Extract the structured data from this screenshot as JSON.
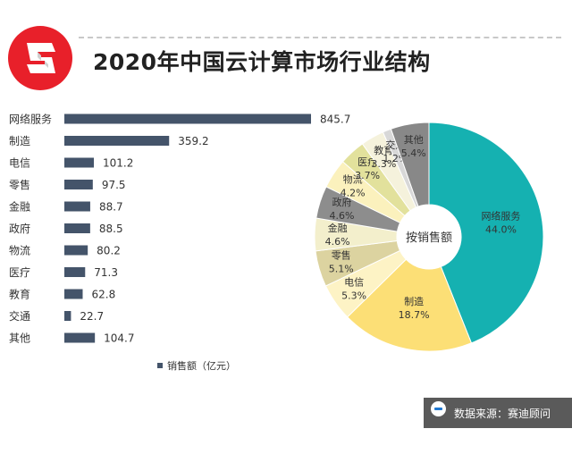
{
  "header": {
    "title": "2020年中国云计算市场行业结构"
  },
  "logo": {
    "icon": "brand-s-logo-icon",
    "color": "#e8202a"
  },
  "source": {
    "icon": "source-info-icon",
    "text": "数据来源：赛迪顾问"
  },
  "colors": {
    "bar": "#44546a",
    "pie_center": "#ffffff"
  },
  "chart_data": [
    {
      "type": "bar",
      "orientation": "horizontal",
      "categories": [
        "网络服务",
        "制造",
        "电信",
        "零售",
        "金融",
        "政府",
        "物流",
        "医疗",
        "教育",
        "交通",
        "其他"
      ],
      "values": [
        845.7,
        359.2,
        101.2,
        97.5,
        88.7,
        88.5,
        80.2,
        71.3,
        62.8,
        22.7,
        104.7
      ],
      "value_labels": [
        "845.7",
        "359.2",
        "101.2",
        "97.5",
        "88.7",
        "88.5",
        "80.2",
        "71.3",
        "62.8",
        "22.7",
        "104.7"
      ],
      "series": [
        {
          "name": "销售额（亿元）",
          "color": "#44546a"
        }
      ],
      "legend": "bottom"
    },
    {
      "type": "pie",
      "style": "donut",
      "center_label": "按销售额",
      "slices": [
        {
          "label": "网络服务",
          "pct": "44.0%",
          "value": 44.0,
          "color": "#15b1b1"
        },
        {
          "label": "制造",
          "pct": "18.7%",
          "value": 18.7,
          "color": "#fcdf76"
        },
        {
          "label": "电信",
          "pct": "5.3%",
          "value": 5.3,
          "color": "#fdf3c5"
        },
        {
          "label": "零售",
          "pct": "5.1%",
          "value": 5.1,
          "color": "#dcd3a0"
        },
        {
          "label": "金融",
          "pct": "4.6%",
          "value": 4.6,
          "color": "#f3efcc"
        },
        {
          "label": "政府",
          "pct": "4.6%",
          "value": 4.6,
          "color": "#8d8d8d"
        },
        {
          "label": "物流",
          "pct": "4.2%",
          "value": 4.2,
          "color": "#fbf1bd"
        },
        {
          "label": "医疗",
          "pct": "3.7%",
          "value": 3.7,
          "color": "#e2e19c"
        },
        {
          "label": "教育",
          "pct": "3.3%",
          "value": 3.3,
          "color": "#f5f2dc"
        },
        {
          "label": "交通",
          "pct": "1.2%",
          "value": 1.2,
          "color": "#d8d8d8"
        },
        {
          "label": "其他",
          "pct": "5.4%",
          "value": 5.4,
          "color": "#888888"
        }
      ]
    }
  ]
}
